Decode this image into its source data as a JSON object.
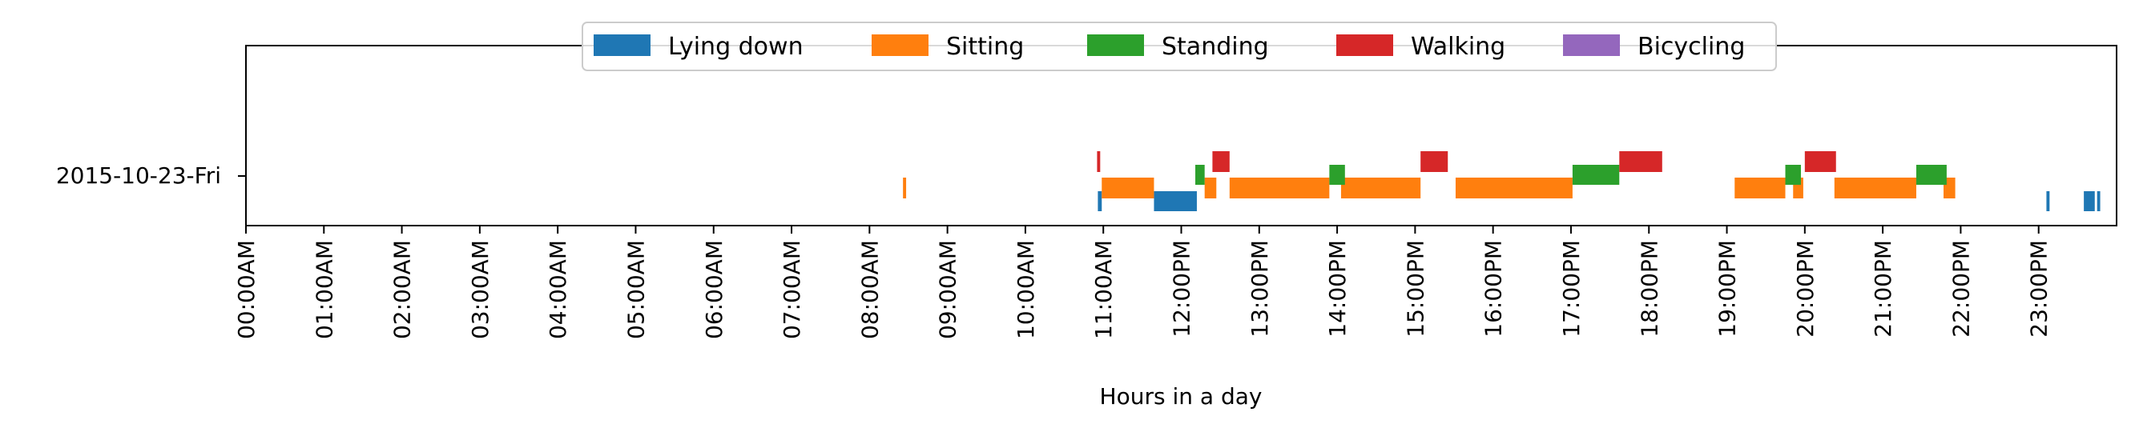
{
  "chart_data": {
    "type": "timeline",
    "title": "",
    "xlabel": "Hours in a day",
    "ylabel": "",
    "xlim": [
      0,
      24
    ],
    "x_ticks": [
      {
        "value": 0,
        "label": "00:00AM"
      },
      {
        "value": 1,
        "label": "01:00AM"
      },
      {
        "value": 2,
        "label": "02:00AM"
      },
      {
        "value": 3,
        "label": "03:00AM"
      },
      {
        "value": 4,
        "label": "04:00AM"
      },
      {
        "value": 5,
        "label": "05:00AM"
      },
      {
        "value": 6,
        "label": "06:00AM"
      },
      {
        "value": 7,
        "label": "07:00AM"
      },
      {
        "value": 8,
        "label": "08:00AM"
      },
      {
        "value": 9,
        "label": "09:00AM"
      },
      {
        "value": 10,
        "label": "10:00AM"
      },
      {
        "value": 11,
        "label": "11:00AM"
      },
      {
        "value": 12,
        "label": "12:00PM"
      },
      {
        "value": 13,
        "label": "13:00PM"
      },
      {
        "value": 14,
        "label": "14:00PM"
      },
      {
        "value": 15,
        "label": "15:00PM"
      },
      {
        "value": 16,
        "label": "16:00PM"
      },
      {
        "value": 17,
        "label": "17:00PM"
      },
      {
        "value": 18,
        "label": "18:00PM"
      },
      {
        "value": 19,
        "label": "19:00PM"
      },
      {
        "value": 20,
        "label": "20:00PM"
      },
      {
        "value": 21,
        "label": "21:00PM"
      },
      {
        "value": 22,
        "label": "22:00PM"
      },
      {
        "value": 23,
        "label": "23:00PM"
      }
    ],
    "y_categories": [
      "2015-10-23-Fri"
    ],
    "grid": false,
    "legend_position": "top-center",
    "series": [
      {
        "name": "Lying down",
        "color": "#1f77b4",
        "intervals": [
          [
            10.93,
            10.98
          ],
          [
            11.65,
            12.2
          ],
          [
            23.1,
            23.14
          ],
          [
            23.58,
            23.72
          ],
          [
            23.75,
            23.79
          ]
        ]
      },
      {
        "name": "Sitting",
        "color": "#ff7f0e",
        "intervals": [
          [
            8.43,
            8.47
          ],
          [
            10.98,
            11.65
          ],
          [
            12.3,
            12.45
          ],
          [
            12.62,
            13.9
          ],
          [
            14.05,
            15.07
          ],
          [
            15.52,
            17.02
          ],
          [
            19.1,
            19.75
          ],
          [
            19.85,
            19.98
          ],
          [
            20.38,
            21.43
          ],
          [
            21.78,
            21.93
          ]
        ]
      },
      {
        "name": "Standing",
        "color": "#2ca02c",
        "intervals": [
          [
            12.18,
            12.3
          ],
          [
            13.9,
            14.1
          ],
          [
            17.02,
            17.62
          ],
          [
            19.75,
            19.95
          ],
          [
            21.43,
            21.82
          ]
        ]
      },
      {
        "name": "Walking",
        "color": "#d62728",
        "intervals": [
          [
            10.92,
            10.96
          ],
          [
            12.4,
            12.62
          ],
          [
            15.07,
            15.42
          ],
          [
            17.62,
            18.17
          ],
          [
            20.0,
            20.4
          ]
        ]
      },
      {
        "name": "Bicycling",
        "color": "#9467bd",
        "intervals": []
      }
    ]
  }
}
